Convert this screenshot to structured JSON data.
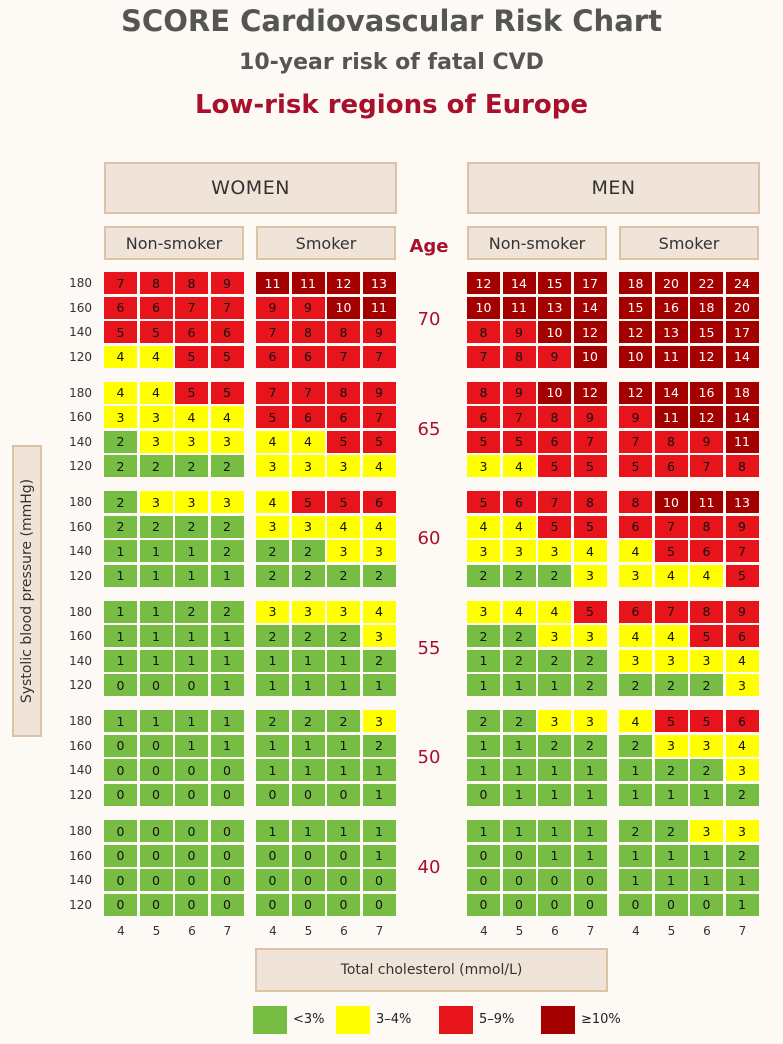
{
  "chart_data": {
    "type": "heatmap",
    "title": "SCORE Cardiovascular Risk Chart",
    "subtitle": "10-year risk of fatal CVD",
    "region": "Low-risk regions of Europe",
    "sexes": [
      "WOMEN",
      "MEN"
    ],
    "smoking": [
      "Non-smoker",
      "Smoker"
    ],
    "age_label": "Age",
    "ages": [
      "70",
      "65",
      "60",
      "55",
      "50",
      "40"
    ],
    "sbp_values": [
      "180",
      "160",
      "140",
      "120"
    ],
    "cholesterol_values": [
      "4",
      "5",
      "6",
      "7"
    ],
    "ylabel": "Systolic blood pressure (mmHg)",
    "xlabel": "Total cholesterol (mmol/L)",
    "legend": [
      {
        "label": "<3%",
        "color": "#77bd43"
      },
      {
        "label": "3–4%",
        "color": "#ffff00"
      },
      {
        "label": "5–9%",
        "color": "#e8141b"
      },
      {
        "label": "≥10%",
        "color": "#a50000"
      }
    ],
    "grid": {
      "70": {
        "women_non_smoker": [
          [
            7,
            8,
            8,
            9
          ],
          [
            6,
            6,
            7,
            7
          ],
          [
            5,
            5,
            6,
            6
          ],
          [
            4,
            4,
            5,
            5
          ]
        ],
        "women_smoker": [
          [
            11,
            11,
            12,
            13
          ],
          [
            9,
            9,
            10,
            11
          ],
          [
            7,
            8,
            8,
            9
          ],
          [
            6,
            6,
            7,
            7
          ]
        ],
        "men_non_smoker": [
          [
            12,
            14,
            15,
            17
          ],
          [
            10,
            11,
            13,
            14
          ],
          [
            8,
            9,
            10,
            12
          ],
          [
            7,
            8,
            9,
            10
          ]
        ],
        "men_smoker": [
          [
            18,
            20,
            22,
            24
          ],
          [
            15,
            16,
            18,
            20
          ],
          [
            12,
            13,
            15,
            17
          ],
          [
            10,
            11,
            12,
            14
          ]
        ]
      },
      "65": {
        "women_non_smoker": [
          [
            4,
            4,
            5,
            5
          ],
          [
            3,
            3,
            4,
            4
          ],
          [
            2,
            3,
            3,
            3
          ],
          [
            2,
            2,
            2,
            2
          ]
        ],
        "women_smoker": [
          [
            7,
            7,
            8,
            9
          ],
          [
            5,
            6,
            6,
            7
          ],
          [
            4,
            4,
            5,
            5
          ],
          [
            3,
            3,
            3,
            4
          ]
        ],
        "men_non_smoker": [
          [
            8,
            9,
            10,
            12
          ],
          [
            6,
            7,
            8,
            9
          ],
          [
            5,
            5,
            6,
            7
          ],
          [
            3,
            4,
            5,
            5
          ]
        ],
        "men_smoker": [
          [
            12,
            14,
            16,
            18
          ],
          [
            9,
            11,
            12,
            14
          ],
          [
            7,
            8,
            9,
            11
          ],
          [
            5,
            6,
            7,
            8
          ]
        ]
      },
      "60": {
        "women_non_smoker": [
          [
            2,
            3,
            3,
            3
          ],
          [
            2,
            2,
            2,
            2
          ],
          [
            1,
            1,
            1,
            2
          ],
          [
            1,
            1,
            1,
            1
          ]
        ],
        "women_smoker": [
          [
            4,
            5,
            5,
            6
          ],
          [
            3,
            3,
            4,
            4
          ],
          [
            2,
            2,
            3,
            3
          ],
          [
            2,
            2,
            2,
            2
          ]
        ],
        "men_non_smoker": [
          [
            5,
            6,
            7,
            8
          ],
          [
            4,
            4,
            5,
            5
          ],
          [
            3,
            3,
            3,
            4
          ],
          [
            2,
            2,
            2,
            3
          ]
        ],
        "men_smoker": [
          [
            8,
            10,
            11,
            13
          ],
          [
            6,
            7,
            8,
            9
          ],
          [
            4,
            5,
            6,
            7
          ],
          [
            3,
            4,
            4,
            5
          ]
        ]
      },
      "55": {
        "women_non_smoker": [
          [
            1,
            1,
            2,
            2
          ],
          [
            1,
            1,
            1,
            1
          ],
          [
            1,
            1,
            1,
            1
          ],
          [
            0,
            0,
            0,
            1
          ]
        ],
        "women_smoker": [
          [
            3,
            3,
            3,
            4
          ],
          [
            2,
            2,
            2,
            3
          ],
          [
            1,
            1,
            1,
            2
          ],
          [
            1,
            1,
            1,
            1
          ]
        ],
        "men_non_smoker": [
          [
            3,
            4,
            4,
            5
          ],
          [
            2,
            2,
            3,
            3
          ],
          [
            1,
            2,
            2,
            2
          ],
          [
            1,
            1,
            1,
            2
          ]
        ],
        "men_smoker": [
          [
            6,
            7,
            8,
            9
          ],
          [
            4,
            4,
            5,
            6
          ],
          [
            3,
            3,
            3,
            4
          ],
          [
            2,
            2,
            2,
            3
          ]
        ]
      },
      "50": {
        "women_non_smoker": [
          [
            1,
            1,
            1,
            1
          ],
          [
            0,
            0,
            1,
            1
          ],
          [
            0,
            0,
            0,
            0
          ],
          [
            0,
            0,
            0,
            0
          ]
        ],
        "women_smoker": [
          [
            2,
            2,
            2,
            3
          ],
          [
            1,
            1,
            1,
            2
          ],
          [
            1,
            1,
            1,
            1
          ],
          [
            0,
            0,
            0,
            1
          ]
        ],
        "men_non_smoker": [
          [
            2,
            2,
            3,
            3
          ],
          [
            1,
            1,
            2,
            2
          ],
          [
            1,
            1,
            1,
            1
          ],
          [
            0,
            1,
            1,
            1
          ]
        ],
        "men_smoker": [
          [
            4,
            5,
            5,
            6
          ],
          [
            2,
            3,
            3,
            4
          ],
          [
            1,
            2,
            2,
            3
          ],
          [
            1,
            1,
            1,
            2
          ]
        ]
      },
      "40": {
        "women_non_smoker": [
          [
            0,
            0,
            0,
            0
          ],
          [
            0,
            0,
            0,
            0
          ],
          [
            0,
            0,
            0,
            0
          ],
          [
            0,
            0,
            0,
            0
          ]
        ],
        "women_smoker": [
          [
            1,
            1,
            1,
            1
          ],
          [
            0,
            0,
            0,
            1
          ],
          [
            0,
            0,
            0,
            0
          ],
          [
            0,
            0,
            0,
            0
          ]
        ],
        "men_non_smoker": [
          [
            1,
            1,
            1,
            1
          ],
          [
            0,
            0,
            1,
            1
          ],
          [
            0,
            0,
            0,
            0
          ],
          [
            0,
            0,
            0,
            0
          ]
        ],
        "men_smoker": [
          [
            2,
            2,
            3,
            3
          ],
          [
            1,
            1,
            1,
            2
          ],
          [
            1,
            1,
            1,
            1
          ],
          [
            0,
            0,
            0,
            1
          ]
        ]
      }
    }
  }
}
